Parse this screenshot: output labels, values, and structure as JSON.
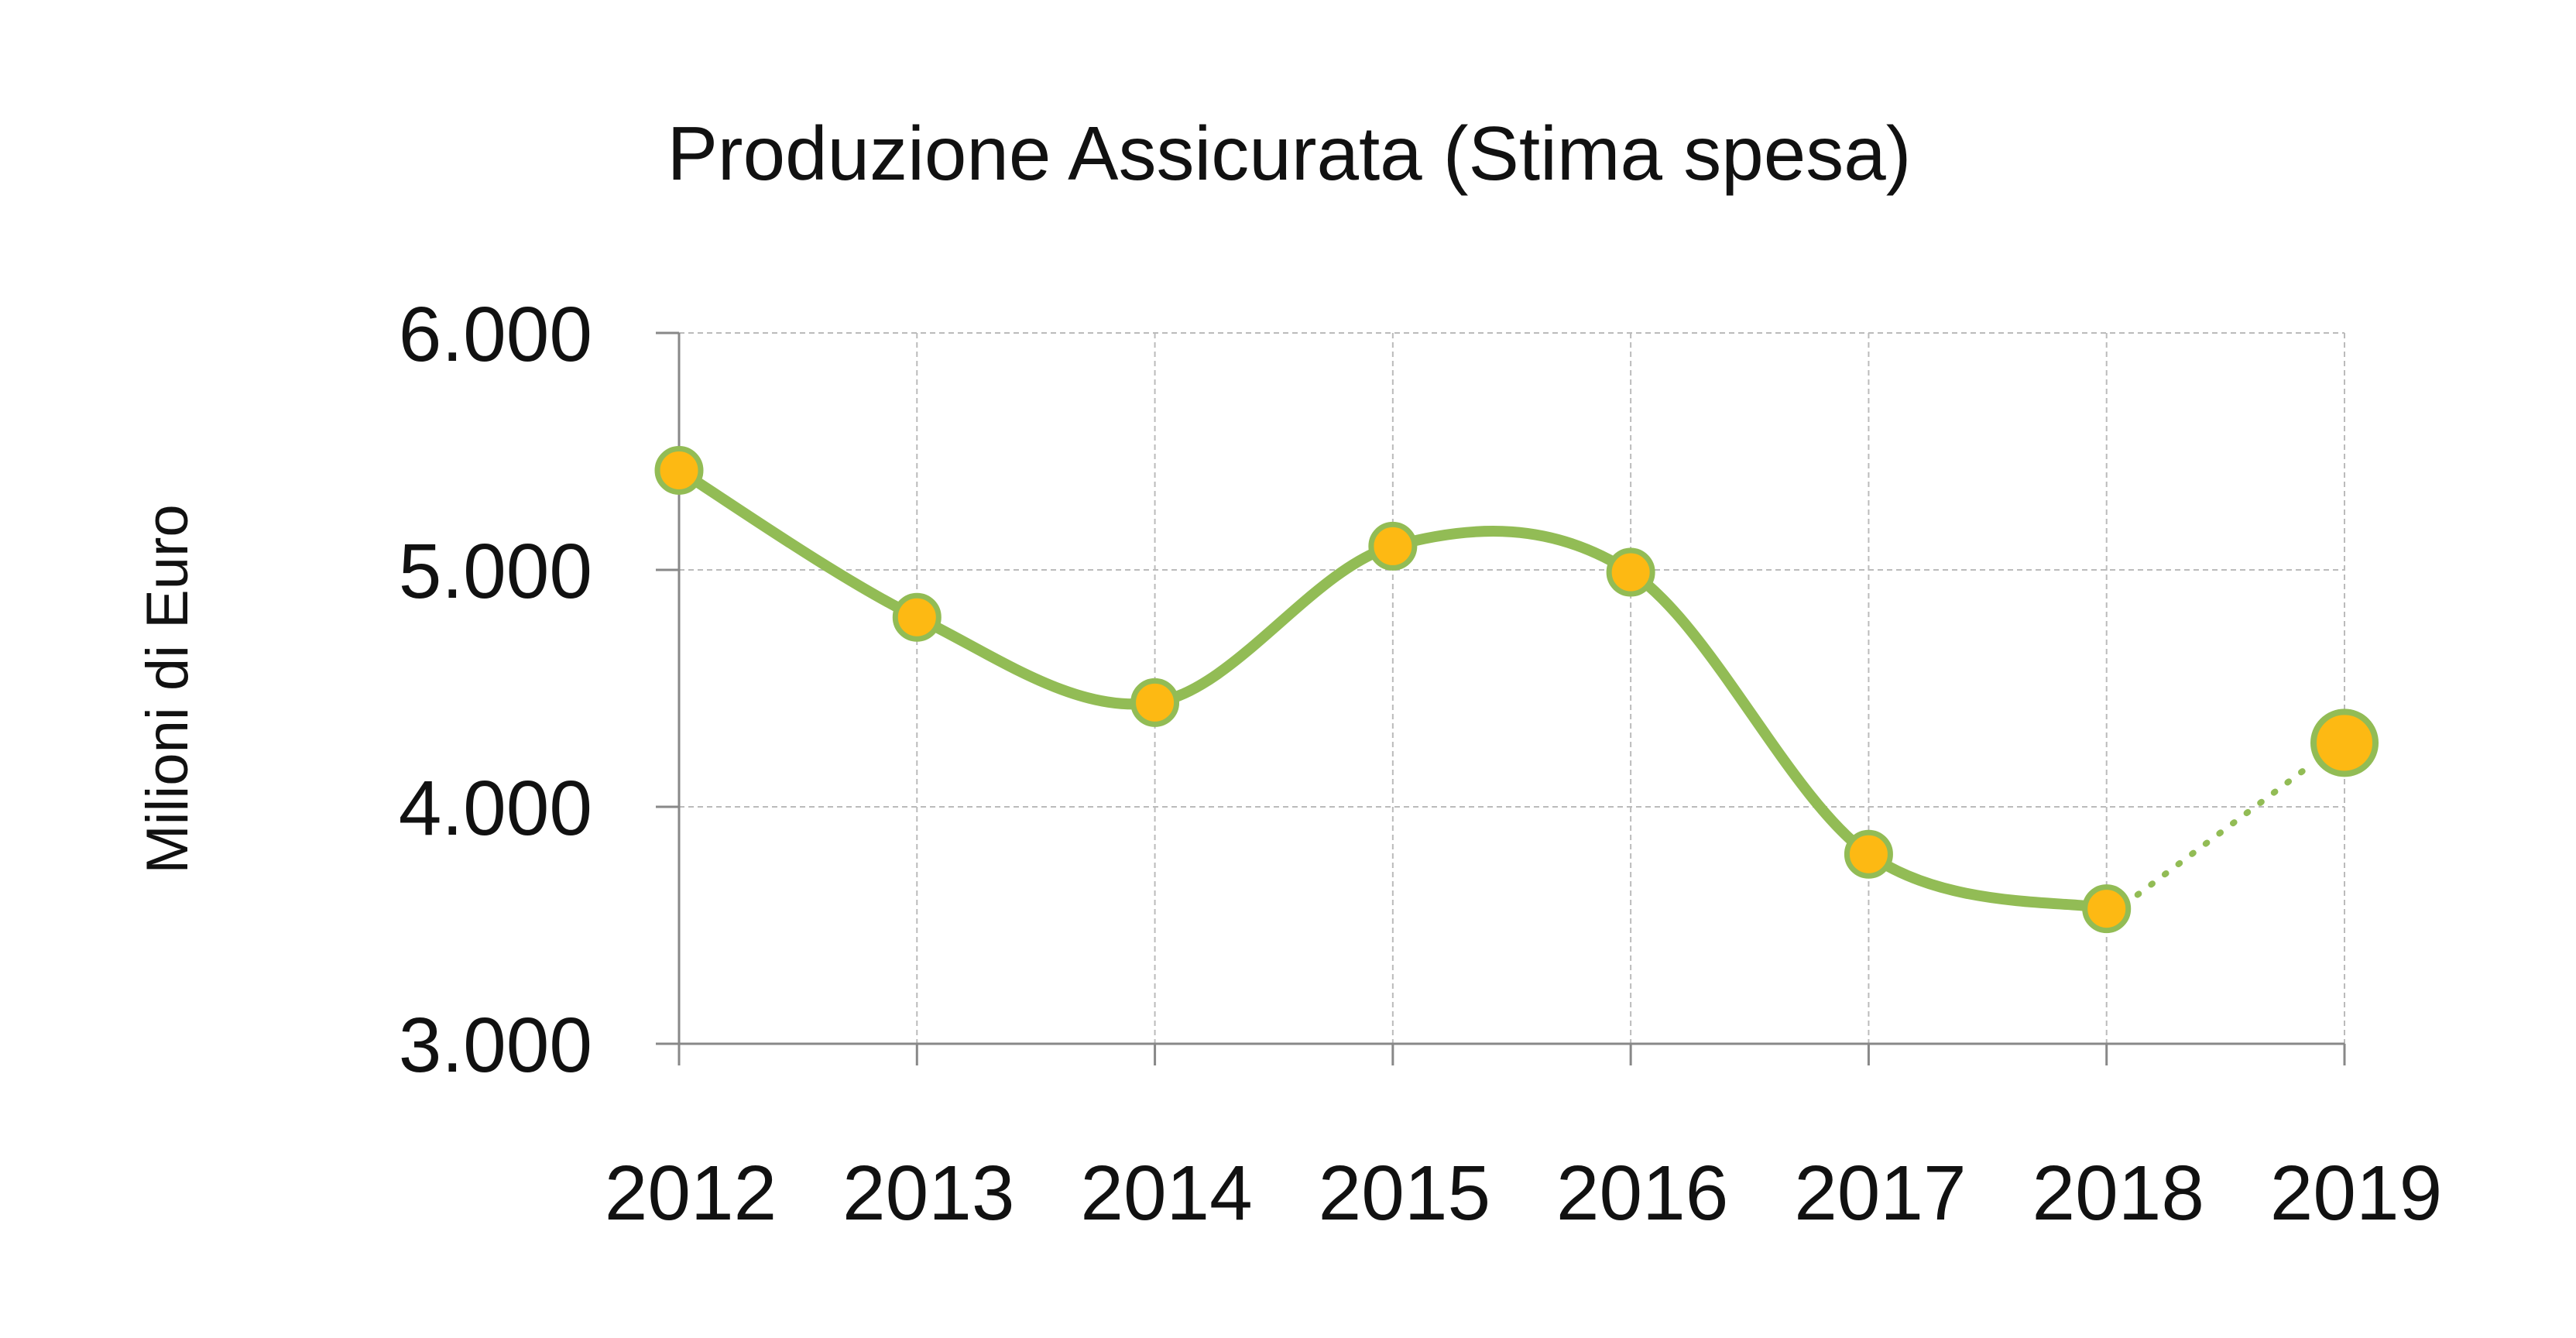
{
  "chart_data": {
    "type": "line",
    "title": "Produzione Assicurata (Stima spesa)",
    "xlabel": "",
    "ylabel": "Milioni di Euro",
    "categories": [
      "2012",
      "2013",
      "2014",
      "2015",
      "2016",
      "2017",
      "2018",
      "2019"
    ],
    "series": [
      {
        "values": [
          5420,
          4800,
          4440,
          5100,
          4990,
          3800,
          3570,
          4270
        ]
      }
    ],
    "estimated_last_point": true,
    "ylim": [
      3000,
      6000
    ],
    "yticks": [
      3000,
      4000,
      5000,
      6000
    ],
    "ytick_labels": [
      "3.000",
      "4.000",
      "5.000",
      "6.000"
    ],
    "grid": true,
    "colors": {
      "line": "#92BC55",
      "marker_fill": "#FDB913",
      "marker_stroke": "#92BC55",
      "grid": "#BBBBBB",
      "axis": "#888888"
    }
  }
}
